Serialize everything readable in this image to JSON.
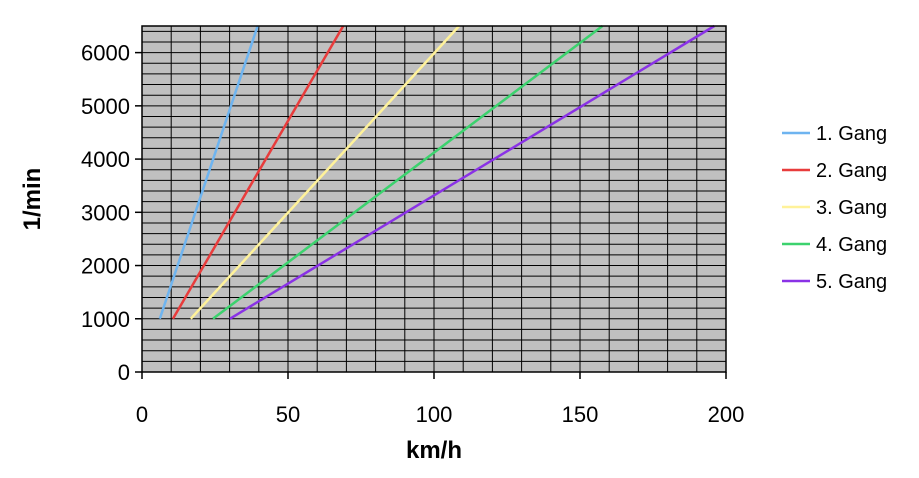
{
  "chart_data": {
    "type": "line",
    "title": "",
    "xlabel": "km/h",
    "ylabel": "1/min",
    "xlim": [
      0,
      200
    ],
    "ylim": [
      0,
      6500
    ],
    "x_ticks": [
      0,
      50,
      100,
      150,
      200
    ],
    "y_ticks": [
      0,
      1000,
      2000,
      3000,
      4000,
      5000,
      6000
    ],
    "grid": true,
    "plot_background": "#c0c0c0",
    "legend_position": "right",
    "series": [
      {
        "name": "1. Gang",
        "color": "#6eb4f0",
        "x": [
          6.1,
          39.6
        ],
        "y": [
          1000,
          6500
        ]
      },
      {
        "name": "2. Gang",
        "color": "#e83c3c",
        "x": [
          10.6,
          68.9
        ],
        "y": [
          1000,
          6500
        ]
      },
      {
        "name": "3. Gang",
        "color": "#fff29a",
        "x": [
          16.7,
          108.6
        ],
        "y": [
          1000,
          6500
        ]
      },
      {
        "name": "4. Gang",
        "color": "#3cd26e",
        "x": [
          24.3,
          157.7
        ],
        "y": [
          1000,
          6500
        ]
      },
      {
        "name": "5. Gang",
        "color": "#8a32e6",
        "x": [
          30.1,
          196.0
        ],
        "y": [
          1000,
          6500
        ]
      }
    ]
  }
}
